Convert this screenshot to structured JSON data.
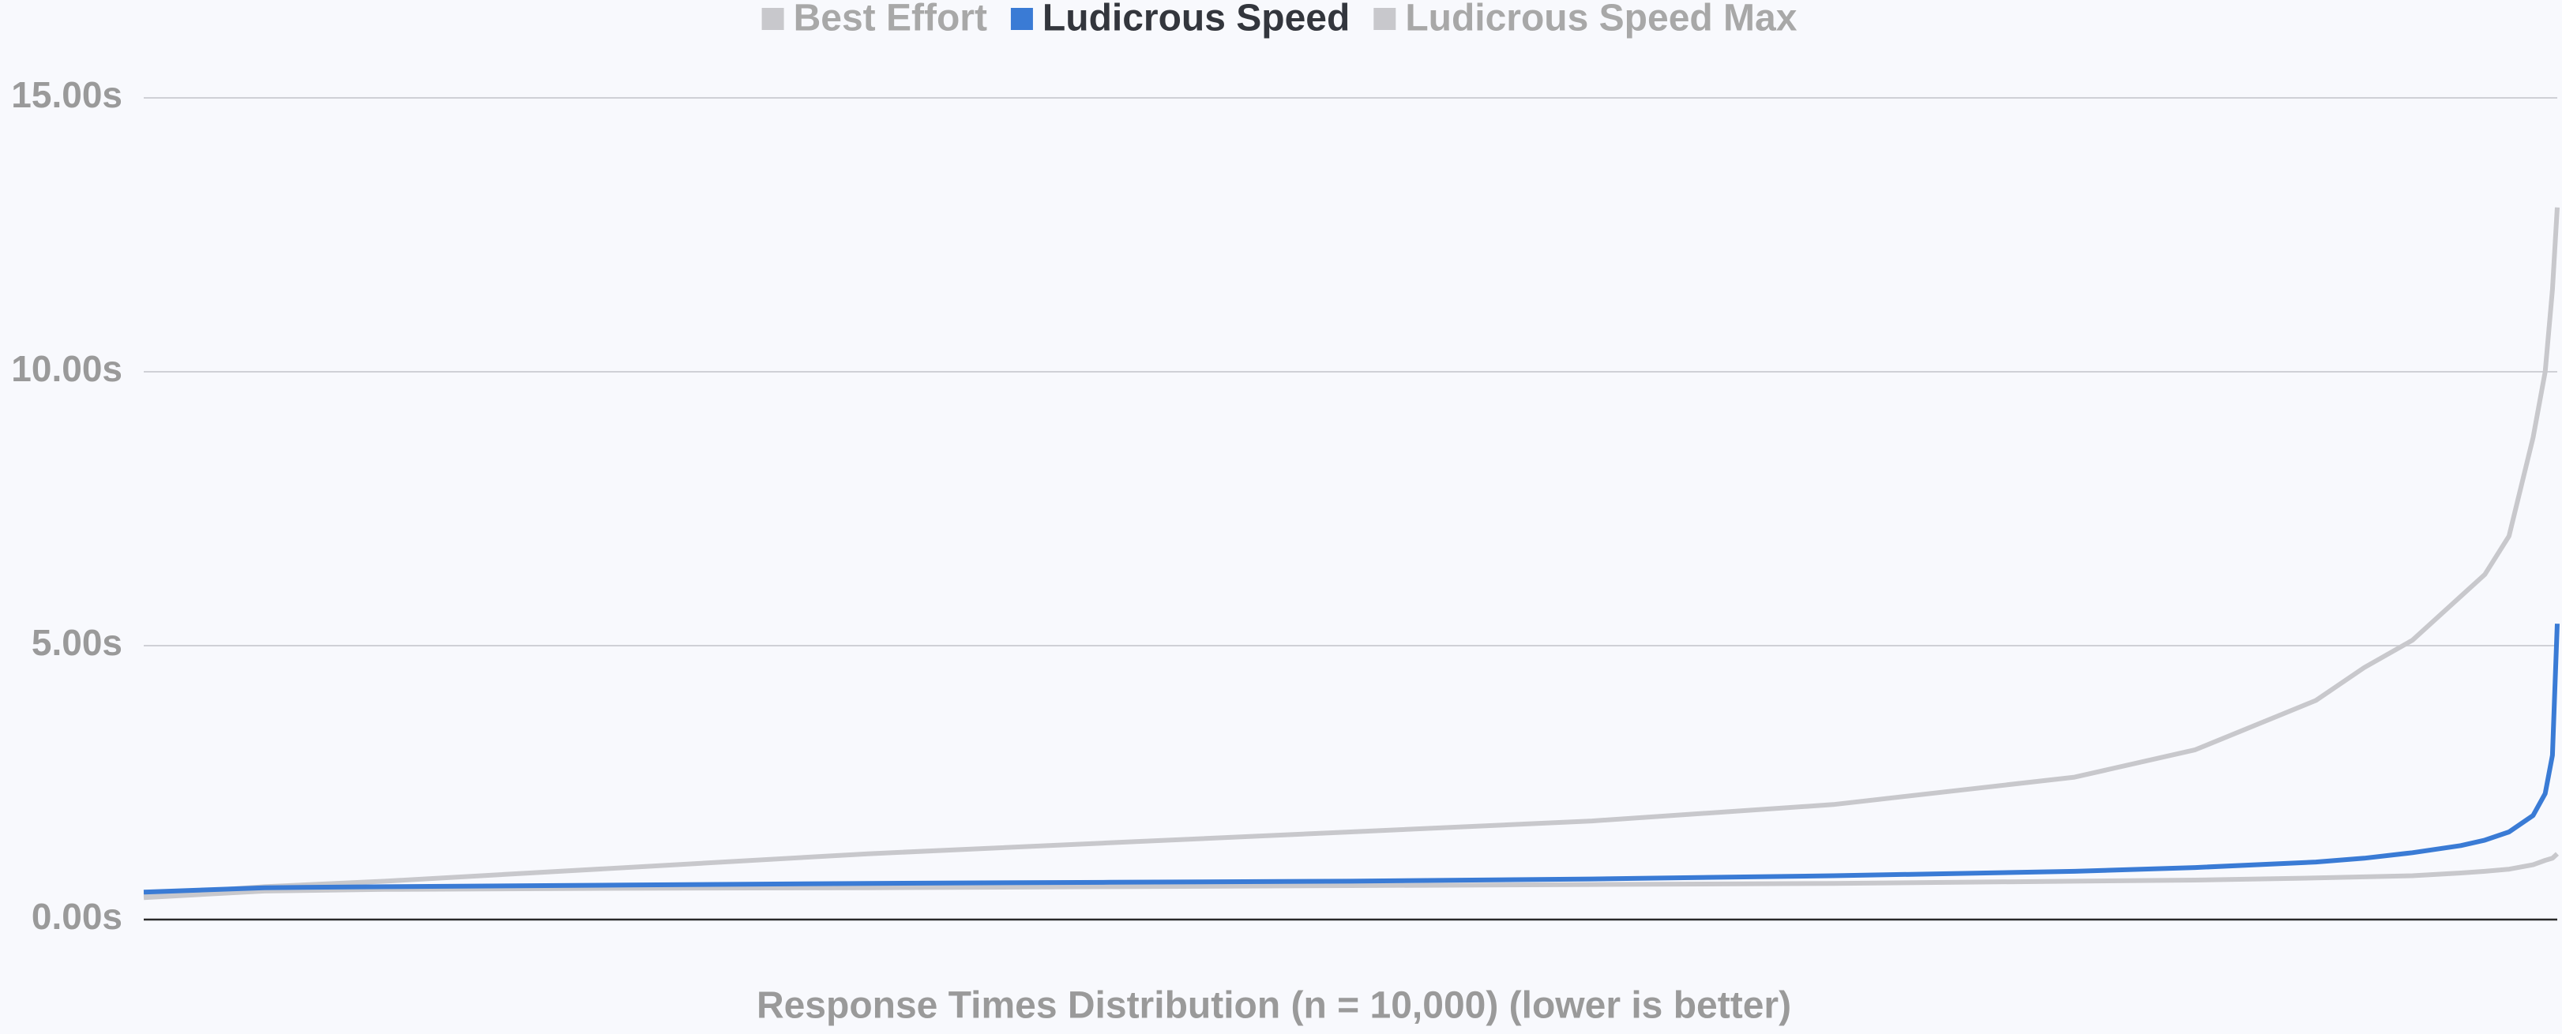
{
  "chart_data": {
    "type": "line",
    "x_label": "Response Times Distribution (n = 10,000) (lower is better)",
    "x": [
      0,
      500,
      1000,
      2000,
      3000,
      4000,
      5000,
      6000,
      7000,
      8000,
      8500,
      9000,
      9200,
      9400,
      9600,
      9700,
      9800,
      9900,
      9950,
      9980,
      10000
    ],
    "xlim": [
      0,
      10000
    ],
    "ylim": [
      0,
      15
    ],
    "yticks": [
      {
        "value": 0,
        "label": "0.00s"
      },
      {
        "value": 5,
        "label": "5.00s"
      },
      {
        "value": 10,
        "label": "10.00s"
      },
      {
        "value": 15,
        "label": "15.00s"
      }
    ],
    "grid": true,
    "legend": "top",
    "series": [
      {
        "name": "Best Effort",
        "color": "#c8c8cc",
        "active": false,
        "values": [
          0.45,
          0.6,
          0.7,
          0.95,
          1.2,
          1.4,
          1.6,
          1.8,
          2.1,
          2.6,
          3.1,
          4.0,
          4.6,
          5.1,
          5.9,
          6.3,
          7.0,
          8.8,
          10.0,
          11.5,
          13.0
        ]
      },
      {
        "name": "Ludicrous Speed",
        "color": "#3a7bd5",
        "active": true,
        "values": [
          0.5,
          0.58,
          0.6,
          0.63,
          0.66,
          0.68,
          0.7,
          0.74,
          0.8,
          0.88,
          0.95,
          1.05,
          1.12,
          1.22,
          1.35,
          1.45,
          1.6,
          1.9,
          2.3,
          3.0,
          5.4
        ]
      },
      {
        "name": "Ludicrous Speed Max",
        "color": "#c8c8cc",
        "active": false,
        "values": [
          0.4,
          0.52,
          0.55,
          0.57,
          0.58,
          0.6,
          0.62,
          0.64,
          0.66,
          0.7,
          0.72,
          0.76,
          0.78,
          0.8,
          0.85,
          0.88,
          0.92,
          1.0,
          1.08,
          1.12,
          1.2
        ]
      }
    ]
  }
}
